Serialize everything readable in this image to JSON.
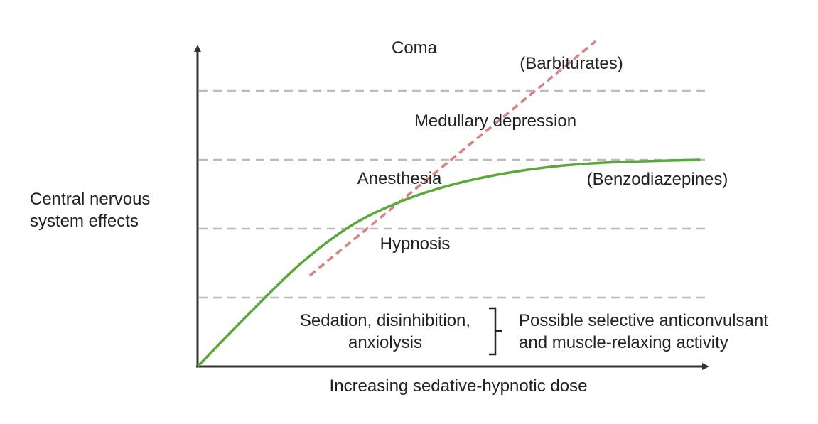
{
  "chart_data": {
    "type": "line",
    "title": "",
    "xlabel": "Increasing sedative-hypnotic dose",
    "ylabel": [
      "Central nervous",
      "system effects"
    ],
    "xlim": [
      0,
      1
    ],
    "ylim": [
      0,
      1
    ],
    "grid": "dashed horizontal level separators",
    "series": [
      {
        "name": "(Barbiturates)",
        "color": "#d98080",
        "style": "dashed",
        "x": [
          0.22,
          0.78
        ],
        "y": [
          0.33,
          1.18
        ]
      },
      {
        "name": "(Benzodiazepines)",
        "color": "#5aa83a",
        "style": "solid",
        "x": [
          0.0,
          0.1,
          0.2,
          0.3,
          0.4,
          0.5,
          0.6,
          0.7,
          0.8,
          0.9,
          0.985
        ],
        "y": [
          0.0,
          0.19,
          0.37,
          0.51,
          0.6,
          0.66,
          0.7,
          0.726,
          0.74,
          0.746,
          0.75
        ]
      }
    ],
    "level_boundaries": [
      0.25,
      0.5,
      0.75,
      1.0
    ],
    "levels": {
      "coma": "Coma",
      "medullary": "Medullary depression",
      "anesthesia": "Anesthesia",
      "hypnosis": "Hypnosis",
      "sedation_line1": "Sedation, disinhibition,",
      "sedation_line2": "anxiolysis"
    },
    "annotation": {
      "line1": "Possible selective anticonvulsant",
      "line2": "and muscle-relaxing activity"
    },
    "colors": {
      "axis": "#333333",
      "grid": "#bbbbbb",
      "text": "#222222"
    }
  }
}
